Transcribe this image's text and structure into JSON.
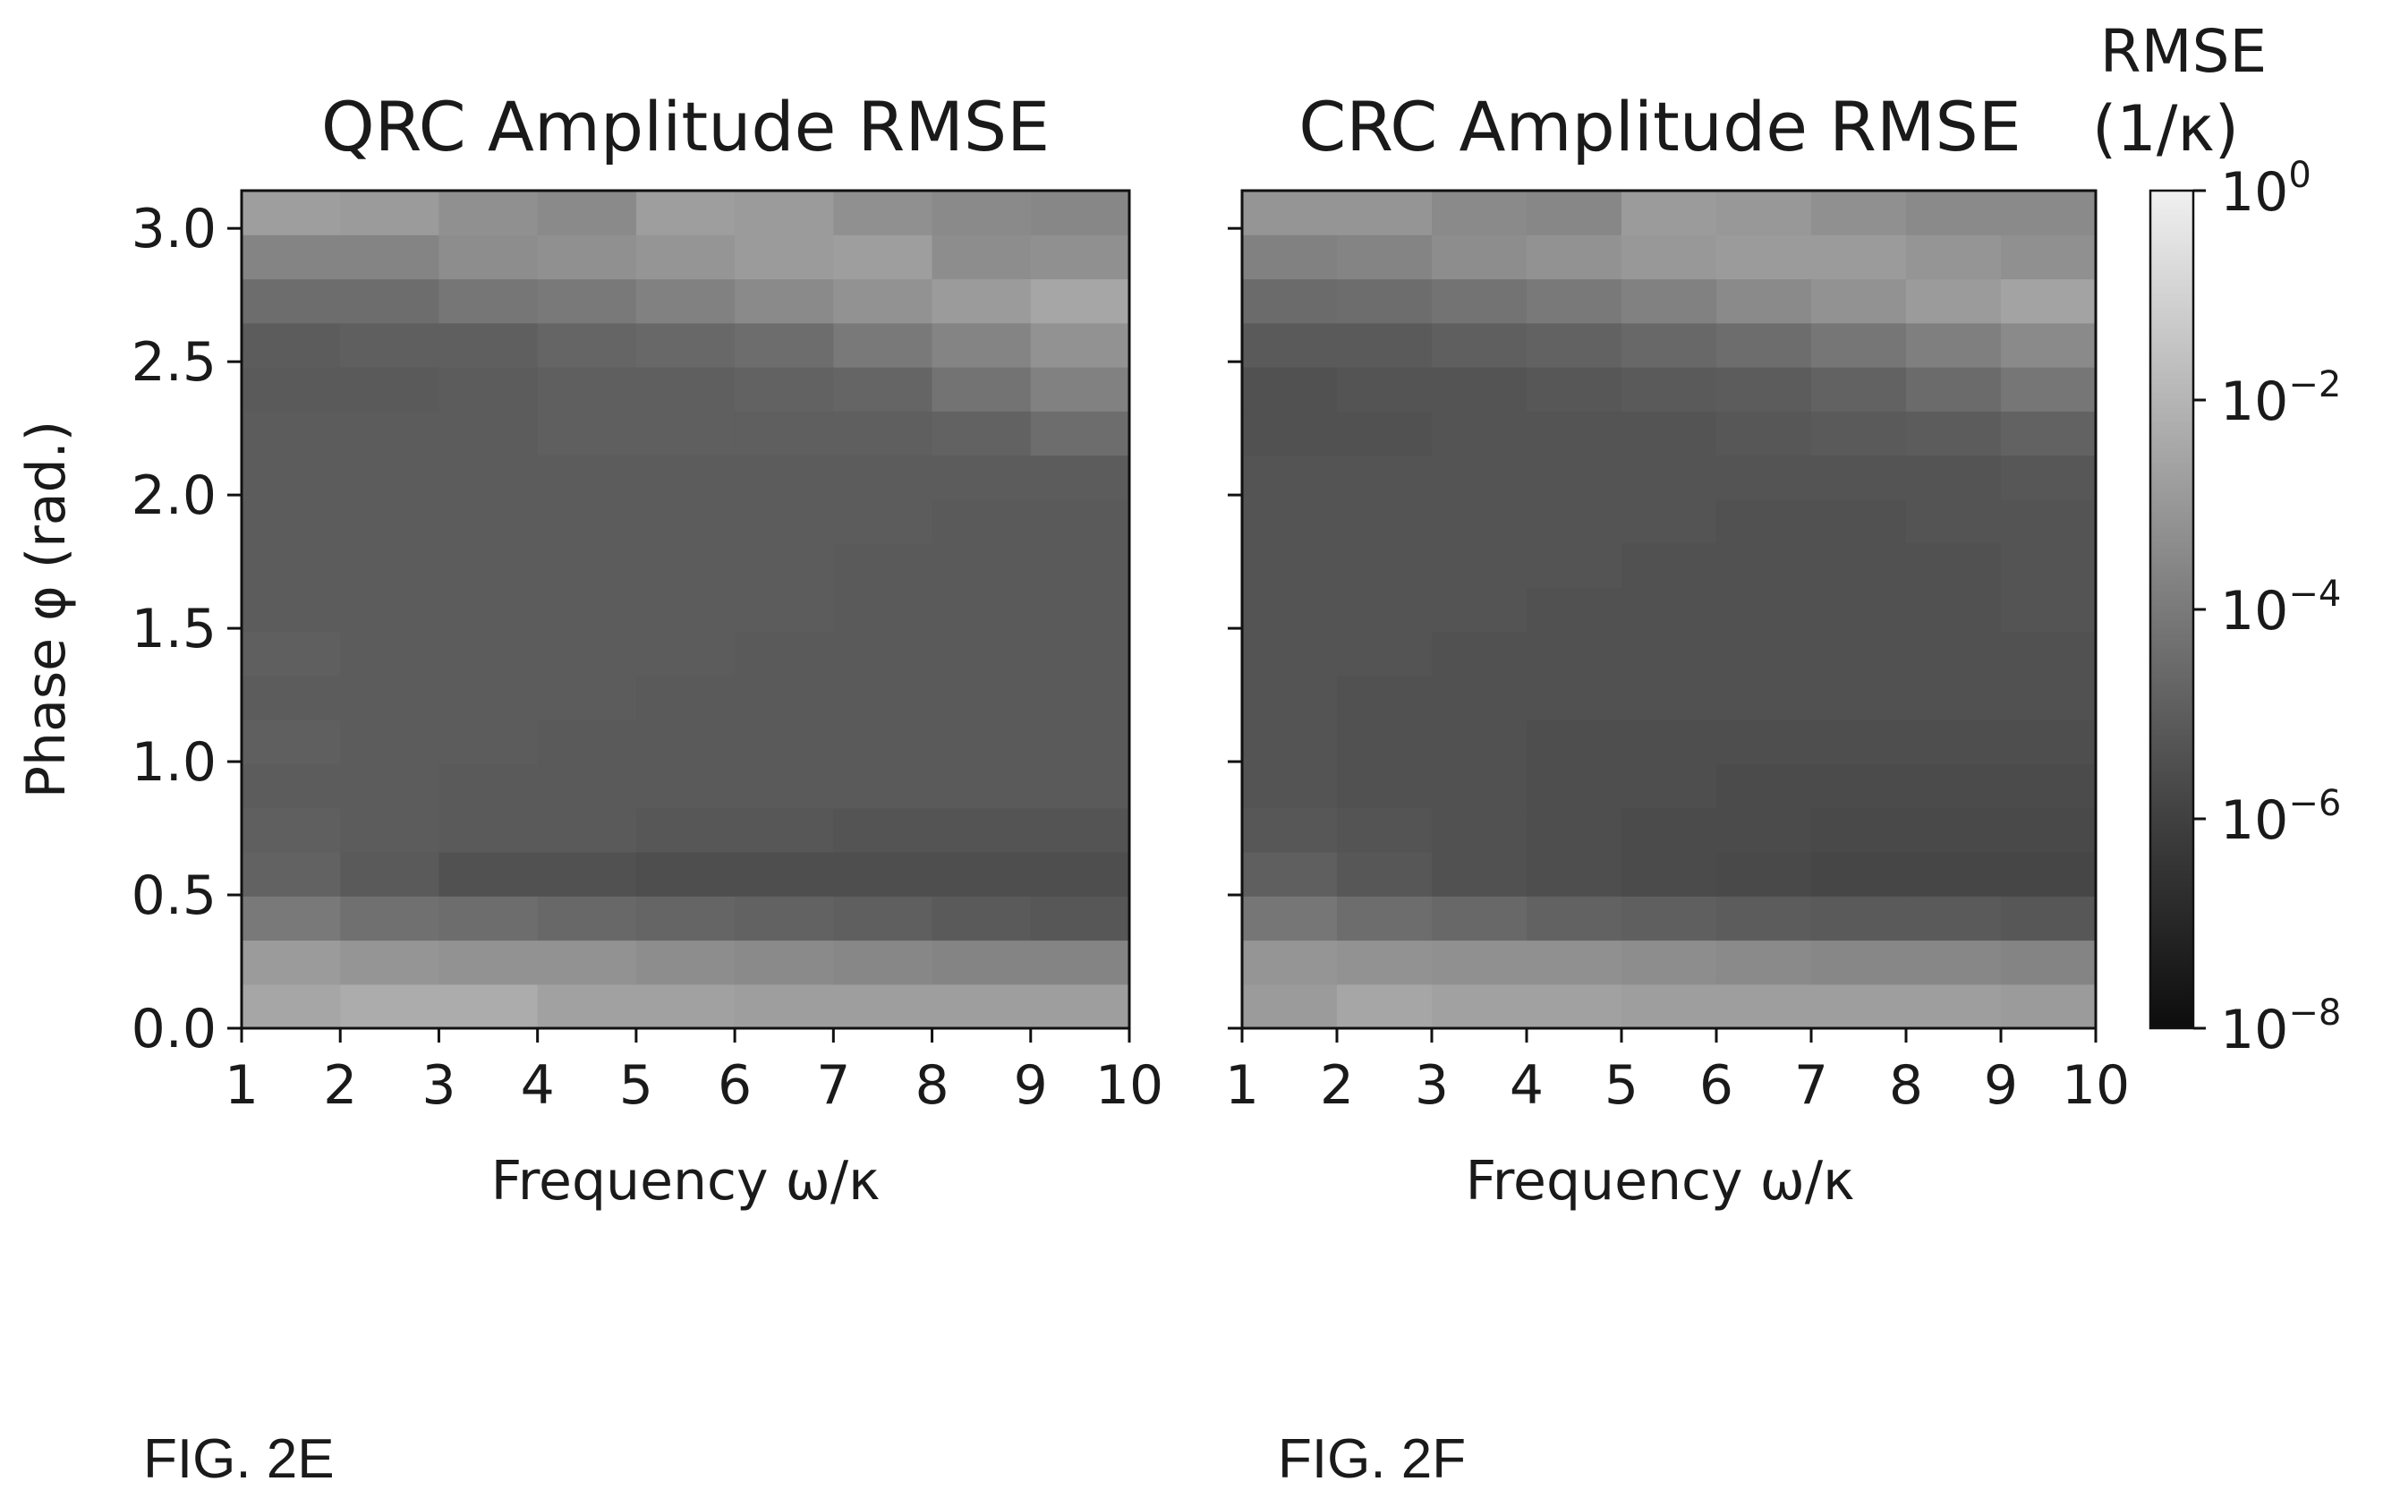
{
  "figure_labels": {
    "left": "FIG. 2E",
    "right": "FIG. 2F"
  },
  "colorbar": {
    "title_line1": "RMSE",
    "title_line2": "(1/κ)",
    "scale": "log",
    "range": [
      1e-08,
      1
    ],
    "ticks": [
      {
        "value": 1,
        "base": "10",
        "exp": "0"
      },
      {
        "value": 0.01,
        "base": "10",
        "exp": "−2"
      },
      {
        "value": 0.0001,
        "base": "10",
        "exp": "−4"
      },
      {
        "value": 1e-06,
        "base": "10",
        "exp": "−6"
      },
      {
        "value": 1e-08,
        "base": "10",
        "exp": "−8"
      }
    ],
    "colormap": "gray"
  },
  "chart_data": [
    {
      "type": "heatmap",
      "title": "QRC Amplitude RMSE",
      "xlabel": "Frequency ω/κ",
      "ylabel": "Phase φ (rad.)",
      "xlim": [
        1,
        10
      ],
      "ylim": [
        0,
        3.14159
      ],
      "xticks": [
        "1",
        "2",
        "3",
        "4",
        "5",
        "6",
        "7",
        "8",
        "9",
        "10"
      ],
      "yticks": [
        "0.0",
        "0.5",
        "1.0",
        "1.5",
        "2.0",
        "2.5",
        "3.0"
      ],
      "columns": 9,
      "rows": 19,
      "value_note": "log10(RMSE), rows listed from phase 0 (bottom) to π (top)",
      "log10_values": [
        [
          -2.6,
          -2.4,
          -2.4,
          -2.8,
          -2.8,
          -2.9,
          -2.9,
          -2.9,
          -2.9
        ],
        [
          -3.0,
          -3.2,
          -3.3,
          -3.3,
          -3.5,
          -3.6,
          -3.7,
          -3.8,
          -3.8
        ],
        [
          -4.2,
          -4.5,
          -4.6,
          -4.8,
          -4.9,
          -5.0,
          -5.1,
          -5.3,
          -5.4
        ],
        [
          -5.0,
          -5.3,
          -5.6,
          -5.6,
          -5.7,
          -5.7,
          -5.7,
          -5.7,
          -5.7
        ],
        [
          -5.1,
          -5.2,
          -5.3,
          -5.3,
          -5.4,
          -5.4,
          -5.5,
          -5.5,
          -5.5
        ],
        [
          -5.2,
          -5.2,
          -5.3,
          -5.3,
          -5.3,
          -5.3,
          -5.3,
          -5.3,
          -5.3
        ],
        [
          -5.1,
          -5.2,
          -5.2,
          -5.3,
          -5.3,
          -5.3,
          -5.3,
          -5.3,
          -5.3
        ],
        [
          -5.2,
          -5.2,
          -5.2,
          -5.2,
          -5.3,
          -5.3,
          -5.3,
          -5.3,
          -5.3
        ],
        [
          -5.1,
          -5.2,
          -5.2,
          -5.2,
          -5.2,
          -5.3,
          -5.3,
          -5.3,
          -5.3
        ],
        [
          -5.2,
          -5.2,
          -5.2,
          -5.2,
          -5.2,
          -5.2,
          -5.3,
          -5.3,
          -5.3
        ],
        [
          -5.2,
          -5.2,
          -5.2,
          -5.2,
          -5.2,
          -5.2,
          -5.3,
          -5.3,
          -5.3
        ],
        [
          -5.2,
          -5.2,
          -5.2,
          -5.2,
          -5.2,
          -5.2,
          -5.2,
          -5.3,
          -5.3
        ],
        [
          -5.2,
          -5.2,
          -5.2,
          -5.2,
          -5.2,
          -5.2,
          -5.2,
          -5.2,
          -5.2
        ],
        [
          -5.2,
          -5.2,
          -5.2,
          -5.1,
          -5.1,
          -5.1,
          -5.1,
          -5.0,
          -4.6
        ],
        [
          -5.3,
          -5.3,
          -5.2,
          -5.1,
          -5.1,
          -5.0,
          -4.9,
          -4.4,
          -3.9
        ],
        [
          -5.2,
          -5.1,
          -5.1,
          -4.9,
          -4.8,
          -4.6,
          -4.2,
          -3.8,
          -3.3
        ],
        [
          -4.6,
          -4.6,
          -4.3,
          -4.2,
          -3.9,
          -3.6,
          -3.3,
          -3.0,
          -2.6
        ],
        [
          -3.8,
          -3.8,
          -3.5,
          -3.4,
          -3.2,
          -3.0,
          -2.9,
          -3.5,
          -3.4
        ],
        [
          -2.9,
          -3.0,
          -3.4,
          -3.6,
          -2.9,
          -3.0,
          -3.4,
          -3.6,
          -3.7
        ]
      ]
    },
    {
      "type": "heatmap",
      "title": "CRC Amplitude RMSE",
      "xlabel": "Frequency ω/κ",
      "ylabel": "",
      "xlim": [
        1,
        10
      ],
      "ylim": [
        0,
        3.14159
      ],
      "xticks": [
        "1",
        "2",
        "3",
        "4",
        "5",
        "6",
        "7",
        "8",
        "9",
        "10"
      ],
      "yticks": [
        "",
        "",
        "",
        "",
        "",
        "",
        ""
      ],
      "columns": 9,
      "rows": 19,
      "value_note": "log10(RMSE), rows listed from phase 0 (bottom) to π (top)",
      "log10_values": [
        [
          -3.0,
          -2.6,
          -2.8,
          -2.8,
          -2.9,
          -2.9,
          -2.9,
          -2.9,
          -3.0
        ],
        [
          -3.2,
          -3.3,
          -3.4,
          -3.4,
          -3.5,
          -3.6,
          -3.7,
          -3.7,
          -3.8
        ],
        [
          -4.3,
          -4.6,
          -4.8,
          -5.0,
          -5.1,
          -5.2,
          -5.3,
          -5.3,
          -5.4
        ],
        [
          -5.1,
          -5.4,
          -5.6,
          -5.7,
          -5.8,
          -5.9,
          -6.0,
          -6.0,
          -6.0
        ],
        [
          -5.4,
          -5.5,
          -5.6,
          -5.7,
          -5.8,
          -5.8,
          -5.9,
          -5.9,
          -5.9
        ],
        [
          -5.5,
          -5.6,
          -5.6,
          -5.7,
          -5.7,
          -5.8,
          -5.8,
          -5.8,
          -5.8
        ],
        [
          -5.5,
          -5.6,
          -5.6,
          -5.7,
          -5.7,
          -5.7,
          -5.7,
          -5.7,
          -5.7
        ],
        [
          -5.5,
          -5.6,
          -5.6,
          -5.6,
          -5.6,
          -5.6,
          -5.6,
          -5.6,
          -5.6
        ],
        [
          -5.5,
          -5.5,
          -5.6,
          -5.6,
          -5.6,
          -5.6,
          -5.6,
          -5.6,
          -5.6
        ],
        [
          -5.5,
          -5.5,
          -5.5,
          -5.6,
          -5.6,
          -5.6,
          -5.6,
          -5.6,
          -5.5
        ],
        [
          -5.5,
          -5.5,
          -5.5,
          -5.5,
          -5.6,
          -5.6,
          -5.6,
          -5.6,
          -5.5
        ],
        [
          -5.5,
          -5.5,
          -5.5,
          -5.5,
          -5.5,
          -5.6,
          -5.6,
          -5.5,
          -5.5
        ],
        [
          -5.5,
          -5.5,
          -5.5,
          -5.5,
          -5.5,
          -5.5,
          -5.5,
          -5.5,
          -5.4
        ],
        [
          -5.6,
          -5.6,
          -5.5,
          -5.5,
          -5.5,
          -5.4,
          -5.3,
          -5.2,
          -5.0
        ],
        [
          -5.6,
          -5.5,
          -5.5,
          -5.4,
          -5.3,
          -5.2,
          -5.0,
          -4.7,
          -4.3
        ],
        [
          -5.3,
          -5.3,
          -5.1,
          -5.0,
          -4.8,
          -4.6,
          -4.3,
          -4.0,
          -3.6
        ],
        [
          -4.7,
          -4.6,
          -4.4,
          -4.2,
          -3.9,
          -3.6,
          -3.3,
          -3.0,
          -2.7
        ],
        [
          -3.9,
          -3.8,
          -3.5,
          -3.3,
          -3.1,
          -3.0,
          -3.0,
          -3.2,
          -3.4
        ],
        [
          -3.2,
          -3.2,
          -3.6,
          -3.7,
          -3.0,
          -3.1,
          -3.4,
          -3.6,
          -3.6
        ]
      ]
    }
  ]
}
